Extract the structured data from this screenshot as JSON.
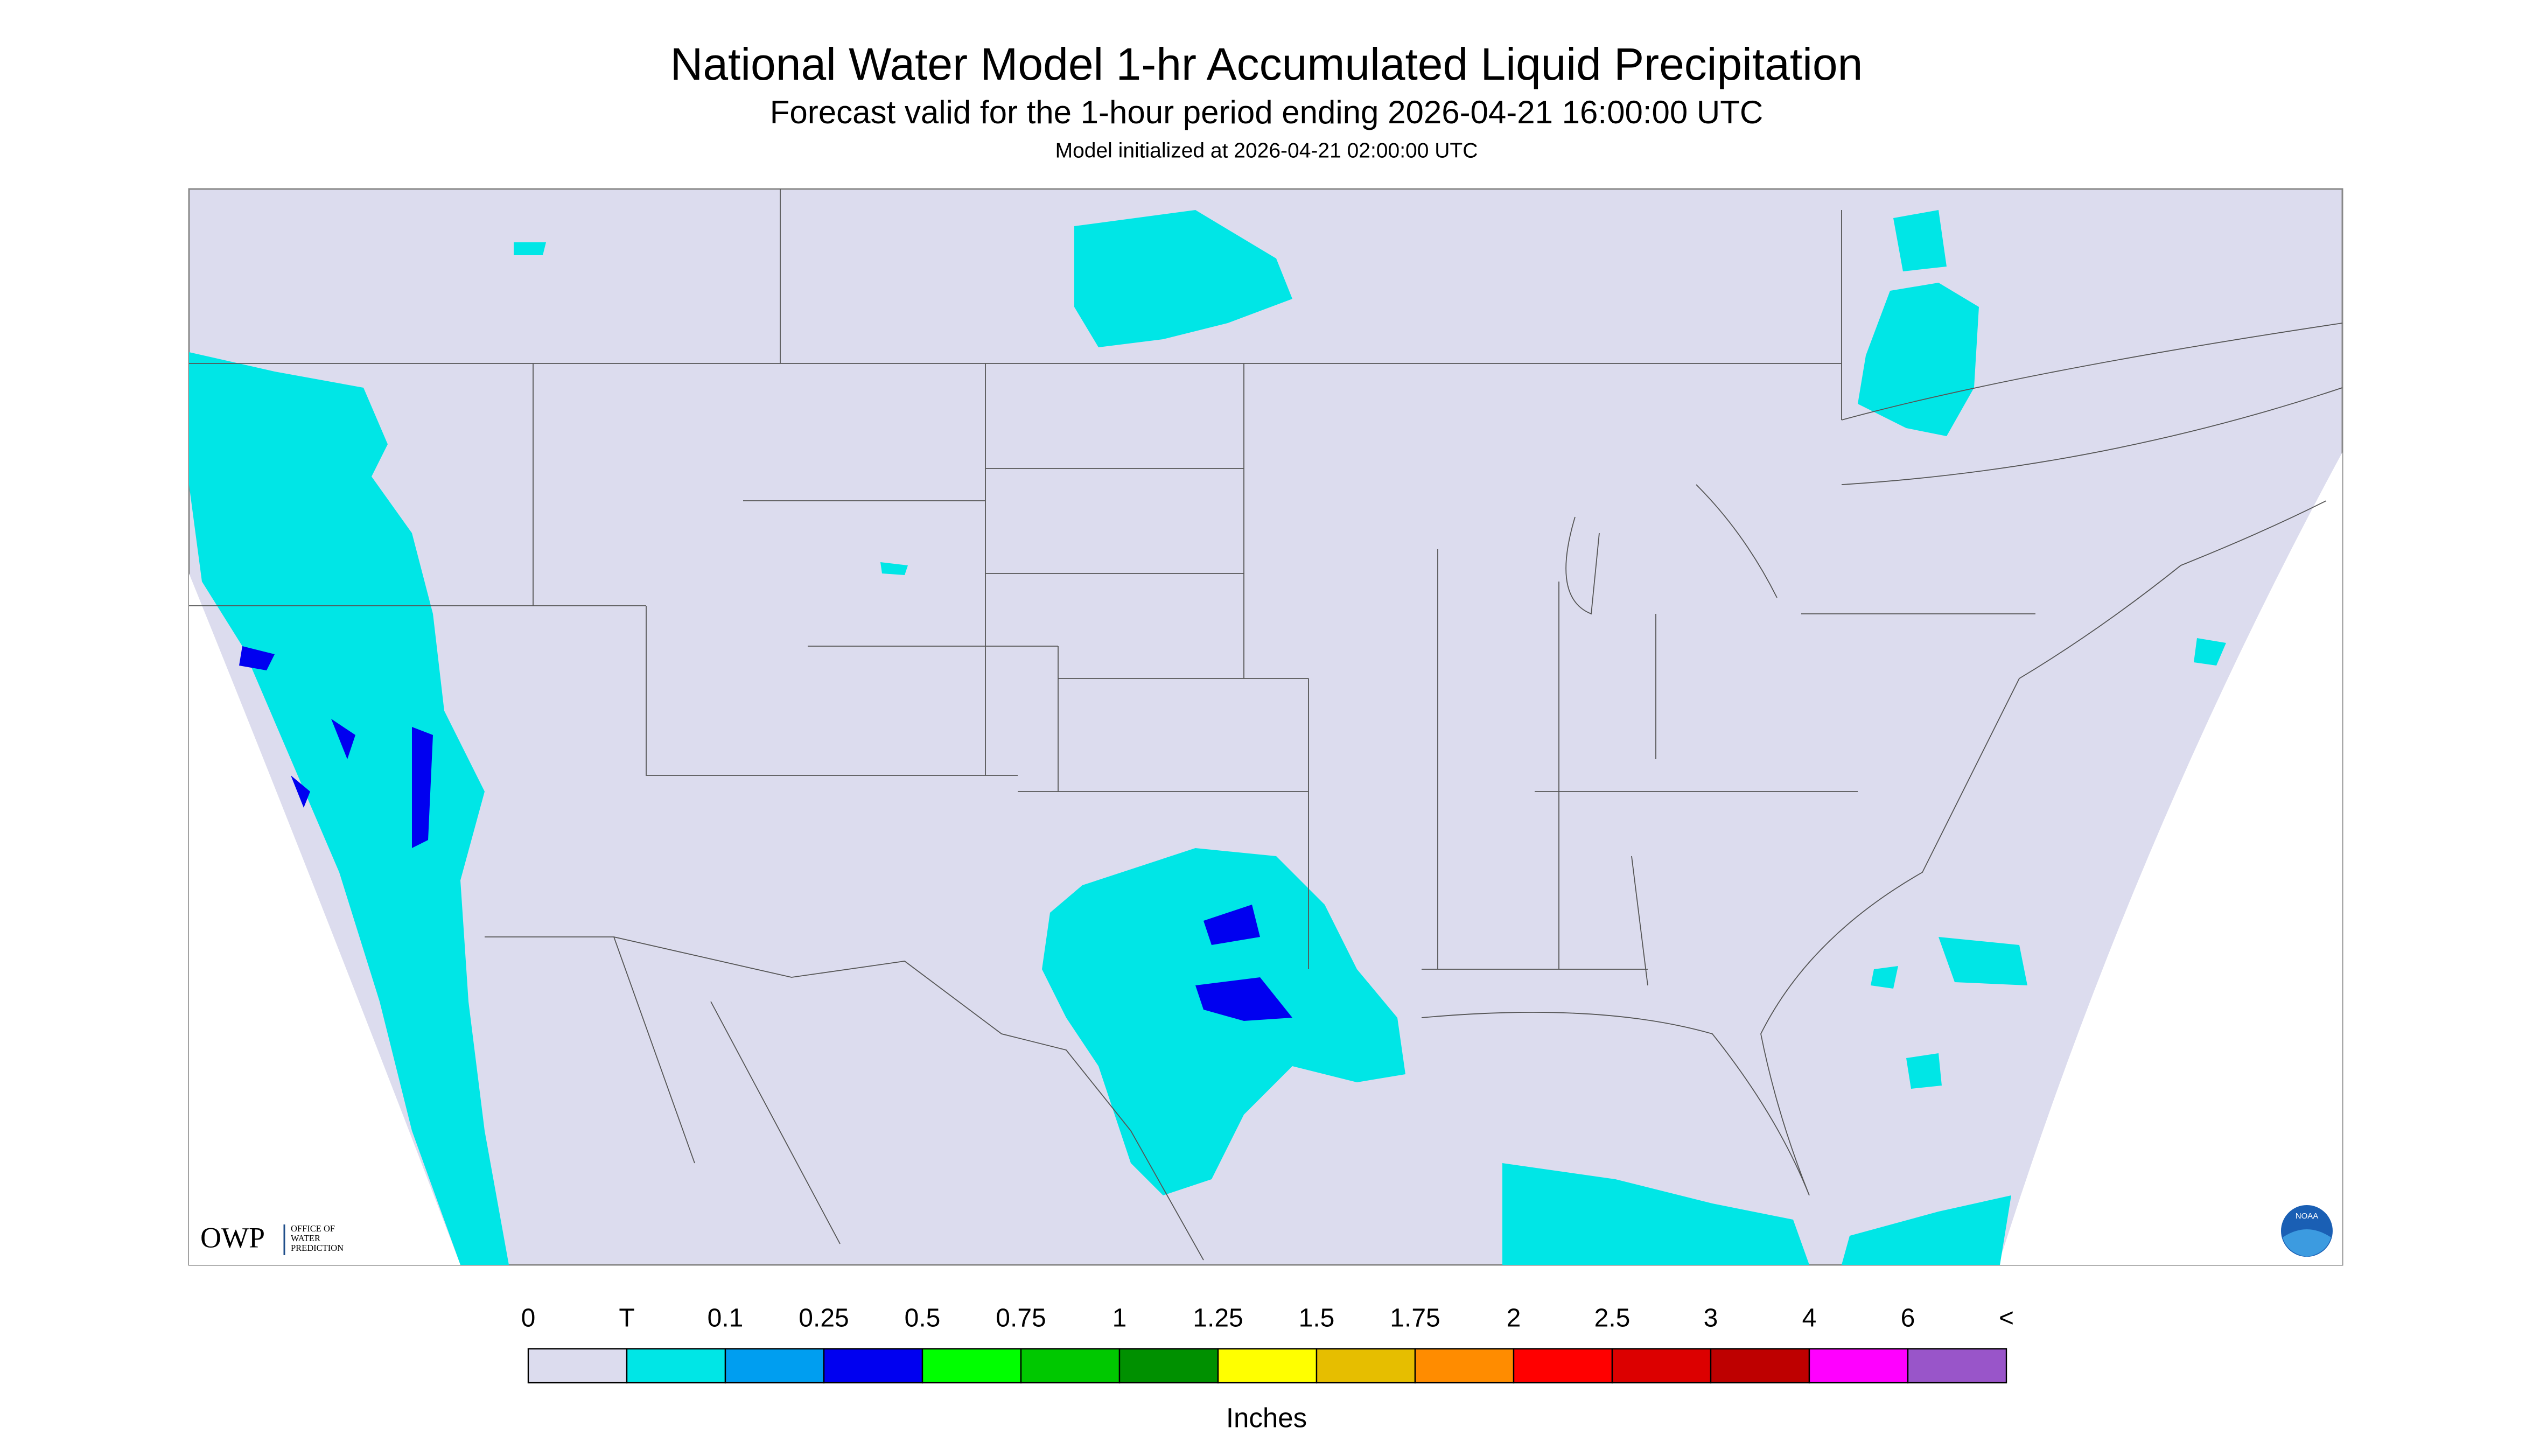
{
  "header": {
    "title": "National Water Model 1-hr Accumulated Liquid Precipitation",
    "subtitle": "Forecast valid for the 1-hour period ending 2026-04-21 16:00:00 UTC",
    "init": "Model initialized at 2026-04-21 02:00:00 UTC"
  },
  "logo": {
    "name": "OWP",
    "lines": [
      "OFFICE OF",
      "WATER",
      "PREDICTION"
    ],
    "badge": "NOAA"
  },
  "legend": {
    "labels": [
      "0",
      "T",
      "0.1",
      "0.25",
      "0.5",
      "0.75",
      "1",
      "1.25",
      "1.5",
      "1.75",
      "2",
      "2.5",
      "3",
      "4",
      "6",
      "<"
    ],
    "colors": [
      "#dcdcee",
      "#00e6e6",
      "#009ef0",
      "#0000f0",
      "#00ff00",
      "#00c800",
      "#009000",
      "#ffff00",
      "#e6be00",
      "#ff8c00",
      "#ff0000",
      "#dc0000",
      "#be0000",
      "#ff00ff",
      "#9955c9"
    ],
    "unit": "Inches"
  }
}
